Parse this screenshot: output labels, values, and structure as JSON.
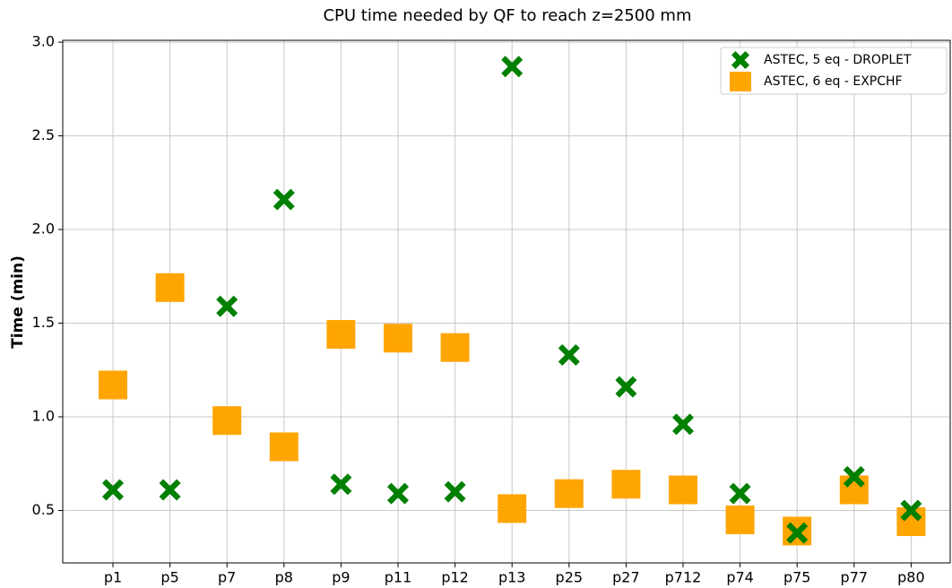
{
  "chart_data": {
    "type": "scatter",
    "title": "CPU time needed by QF to reach z=2500 mm",
    "ylabel": "Time (min)",
    "categories": [
      "p1",
      "p5",
      "p7",
      "p8",
      "p9",
      "p11",
      "p12",
      "p13",
      "p25",
      "p27",
      "p712",
      "p74",
      "p75",
      "p77",
      "p80"
    ],
    "series": [
      {
        "name": "ASTEC, 5 eq - DROPLET",
        "color": "#008000",
        "marker": "x",
        "values": [
          0.61,
          0.61,
          1.59,
          2.16,
          0.64,
          0.59,
          0.6,
          2.87,
          1.33,
          1.16,
          0.96,
          0.59,
          0.38,
          0.68,
          0.5
        ]
      },
      {
        "name": "ASTEC, 6 eq - EXPCHF",
        "color": "#ffa500",
        "marker": "s",
        "values": [
          1.17,
          1.69,
          0.98,
          0.84,
          1.44,
          1.42,
          1.37,
          0.51,
          0.59,
          0.64,
          0.61,
          0.45,
          0.39,
          0.61,
          0.44
        ]
      }
    ],
    "ylim": [
      0.22,
      3.01
    ],
    "yticks": [
      0.5,
      {
        "value": 1,
        "label": "1.0"
      },
      1.5,
      {
        "value": 2,
        "label": "2.0"
      },
      2.5,
      {
        "value": 3,
        "label": "3.0"
      }
    ],
    "grid": true,
    "legend": "upper right"
  }
}
